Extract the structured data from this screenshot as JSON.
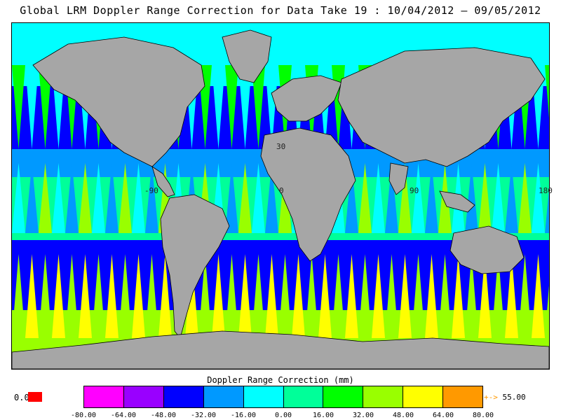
{
  "title": "Global LRM Doppler Range Correction for Data Take 19 : 10/04/2012 – 09/05/2012",
  "map": {
    "lon_labels": [
      "-90",
      "0",
      "90",
      "180"
    ],
    "lat_labels": [
      "30"
    ]
  },
  "legend": {
    "title": "Doppler Range Correction (mm)",
    "zero_value": "0.0",
    "zero_color": "#ff0000",
    "over_arrow": "+->",
    "over_value": "55.00",
    "segments": [
      {
        "color": "#ff00ff"
      },
      {
        "color": "#9900ff"
      },
      {
        "color": "#0000ff"
      },
      {
        "color": "#0099ff"
      },
      {
        "color": "#00ffff"
      },
      {
        "color": "#00ff99"
      },
      {
        "color": "#00ff00"
      },
      {
        "color": "#99ff00"
      },
      {
        "color": "#ffff00"
      },
      {
        "color": "#ff9900"
      }
    ],
    "ticks": [
      "-80.00",
      "-64.00",
      "-48.00",
      "-32.00",
      "-16.00",
      "0.00",
      "16.00",
      "32.00",
      "48.00",
      "64.00",
      "80.00"
    ]
  }
}
